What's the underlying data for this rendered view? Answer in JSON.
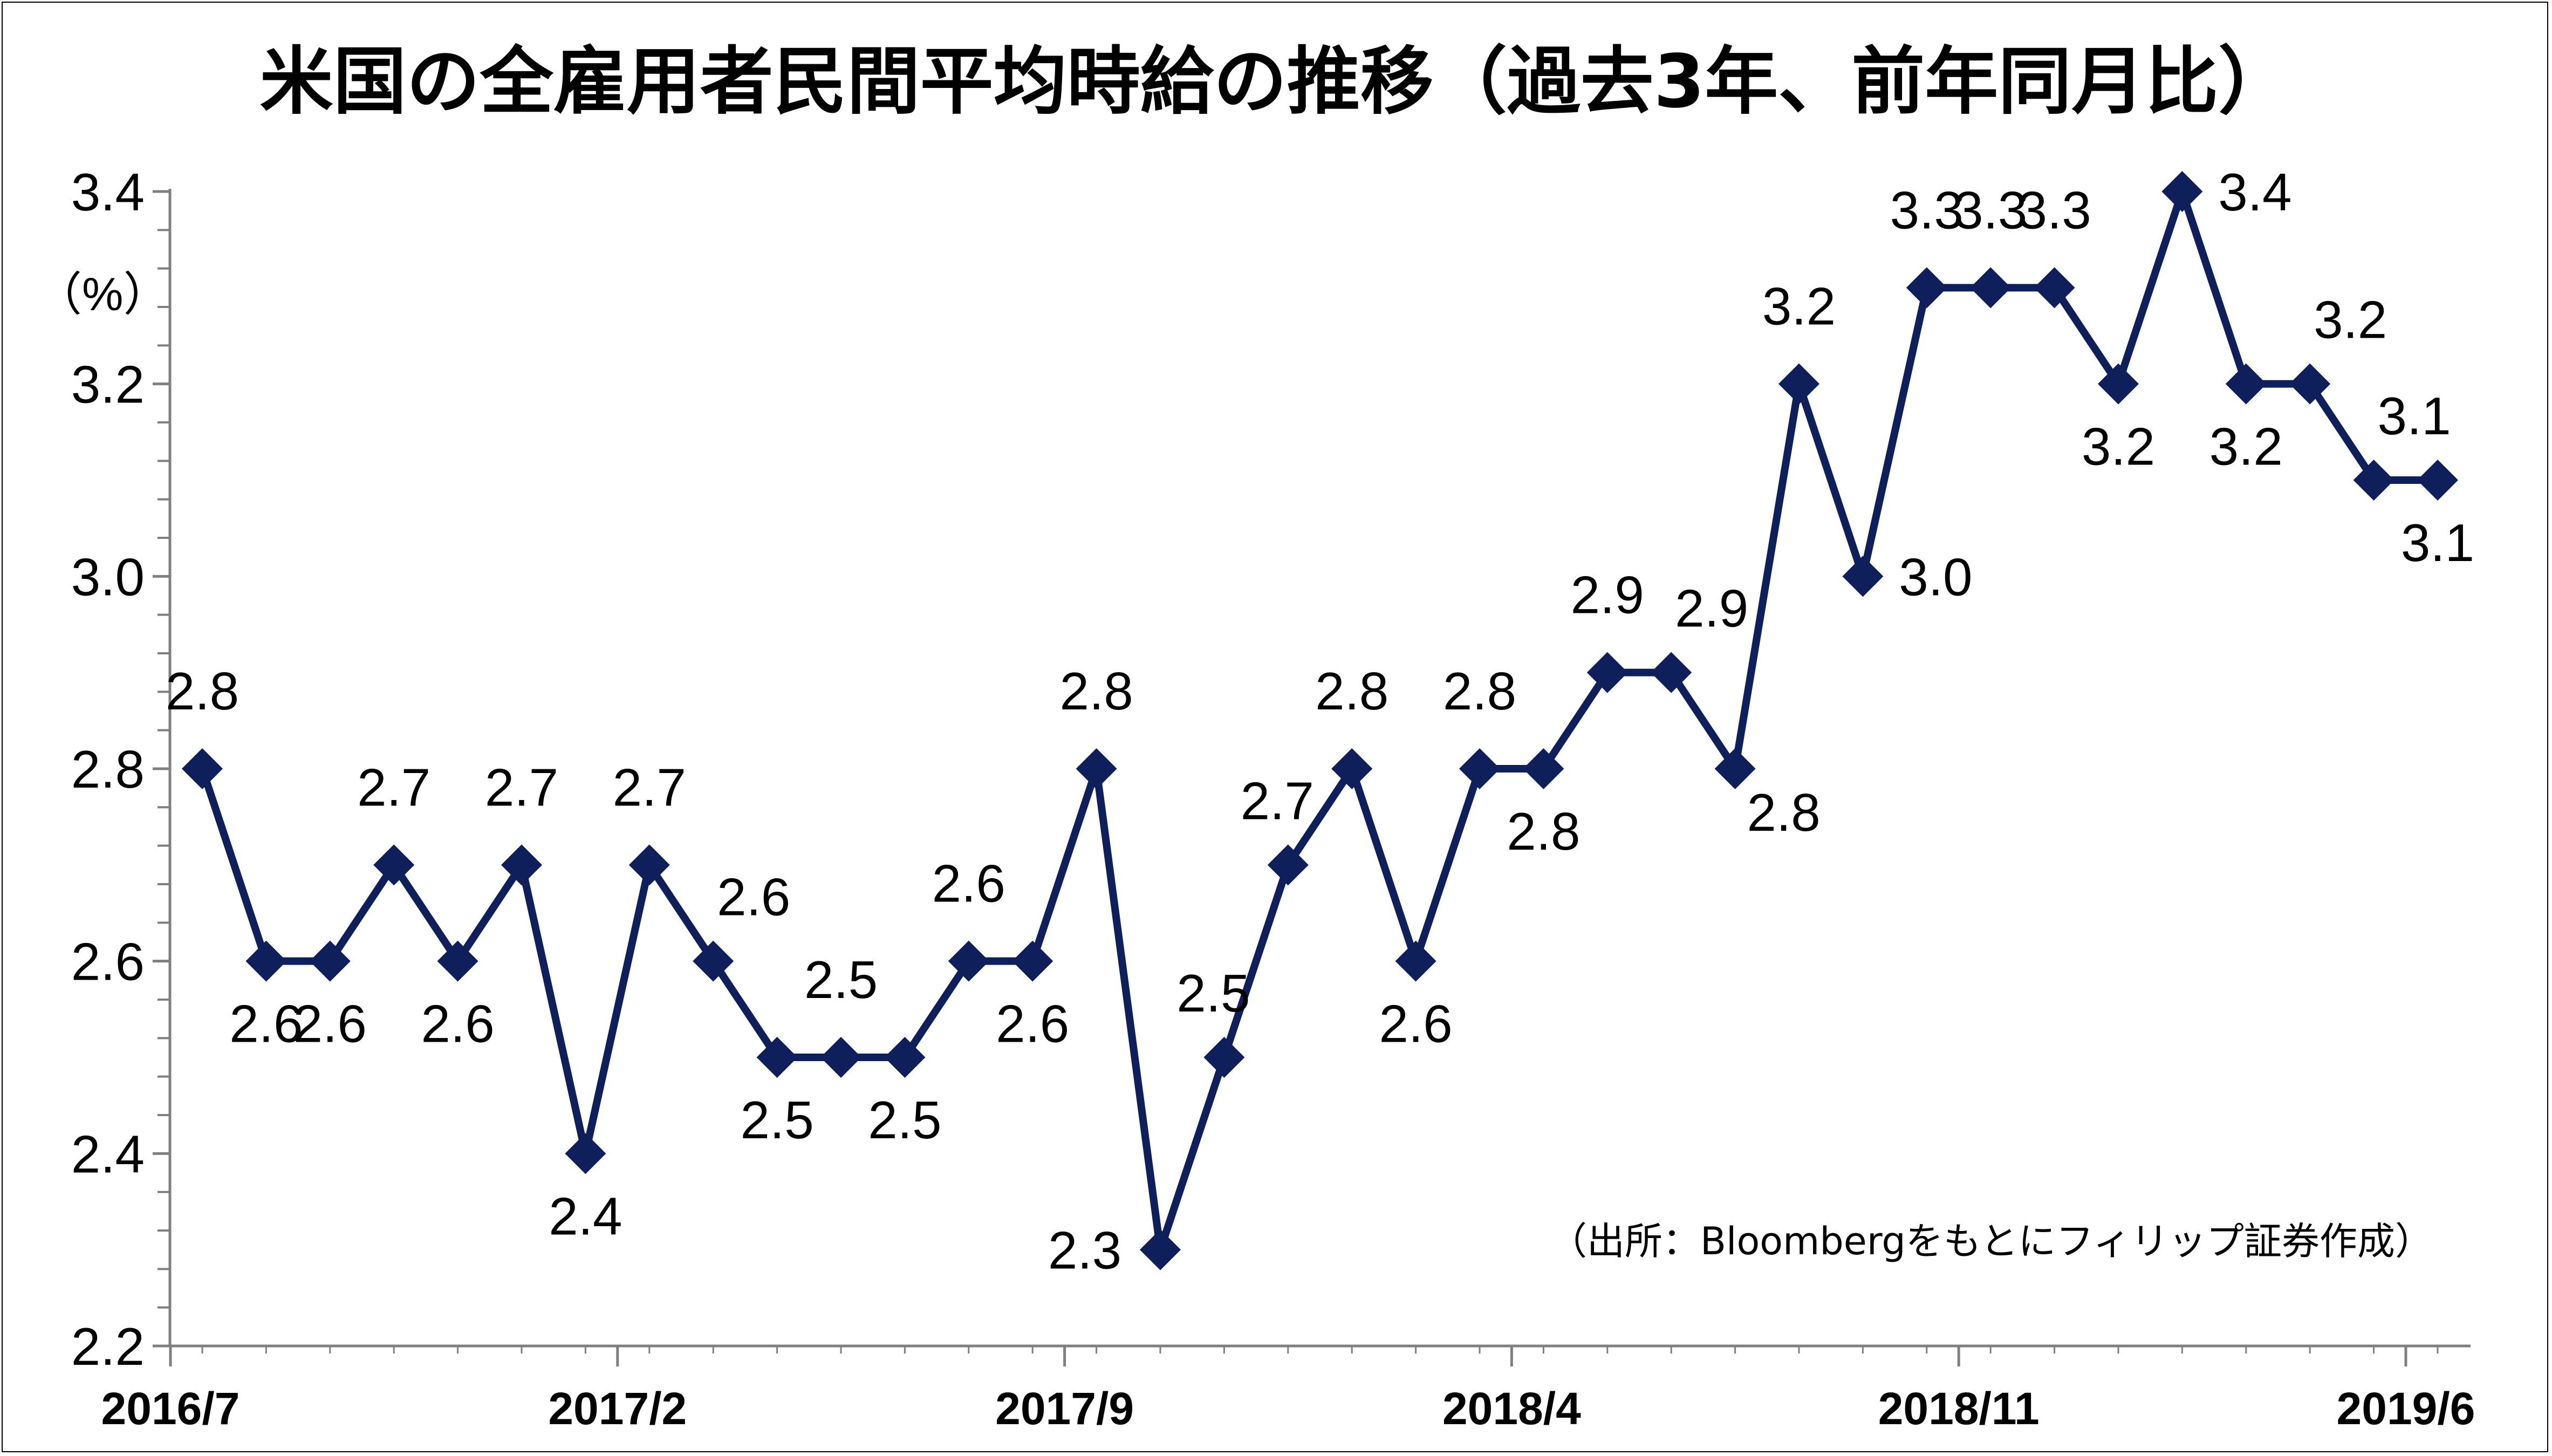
{
  "chart_data": {
    "type": "line",
    "title": "米国の全雇用者民間平均時給の推移（過去3年、前年同月比）",
    "ylabel": "（%）",
    "ylim": [
      2.2,
      3.4
    ],
    "yticks": [
      "2.2",
      "2.4",
      "2.6",
      "2.8",
      "3.0",
      "3.2",
      "3.4"
    ],
    "xtick_labels": [
      "2016/7",
      "2017/2",
      "2017/9",
      "2018/4",
      "2018/11",
      "2019/6"
    ],
    "source_note": "（出所：Bloombergをもとにフィリップ証券作成）",
    "grid": false,
    "legend": "none",
    "colors": {
      "series": "#0e1f5b",
      "axis": "#7f7f7f"
    },
    "series": [
      {
        "values": [
          2.8,
          2.6,
          2.6,
          2.7,
          2.6,
          2.7,
          2.4,
          2.7,
          2.6,
          2.5,
          2.5,
          2.5,
          2.6,
          2.6,
          2.8,
          2.3,
          2.5,
          2.7,
          2.8,
          2.6,
          2.8,
          2.8,
          2.9,
          2.9,
          2.8,
          3.2,
          3.0,
          3.3,
          3.3,
          3.3,
          3.2,
          3.4,
          3.2,
          3.2,
          3.1,
          3.1
        ],
        "data_labels": [
          "2.8",
          "2.6",
          "2.6",
          "2.7",
          "2.6",
          "2.7",
          "2.4",
          "2.7",
          "2.6",
          "2.5",
          "2.5",
          "2.5",
          "2.6",
          "2.6",
          "2.8",
          "2.3",
          "2.5",
          "2.7",
          "2.8",
          "2.6",
          "2.8",
          "2.8",
          "2.9",
          "2.9",
          "2.8",
          "3.2",
          "3.0",
          "3.3",
          "3.3",
          "3.3",
          "3.2",
          "3.4",
          "3.2",
          "3.2",
          "3.1",
          "3.1"
        ]
      }
    ]
  }
}
